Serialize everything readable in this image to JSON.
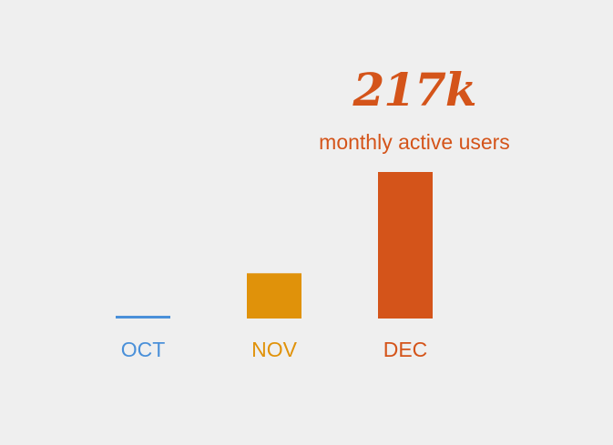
{
  "chart_data": {
    "type": "bar",
    "title": "",
    "xlabel": "",
    "ylabel": "",
    "categories": [
      "OCT",
      "NOV",
      "DEC"
    ],
    "values": [
      1,
      67,
      217
    ],
    "unit": "k",
    "grid": false,
    "colors": [
      "#4a90d9",
      "#e0920a",
      "#d4541a"
    ],
    "ylim": [
      0,
      217
    ],
    "annotation": {
      "value_text": "217k",
      "caption": "monthly active users",
      "target_category": "DEC"
    }
  }
}
